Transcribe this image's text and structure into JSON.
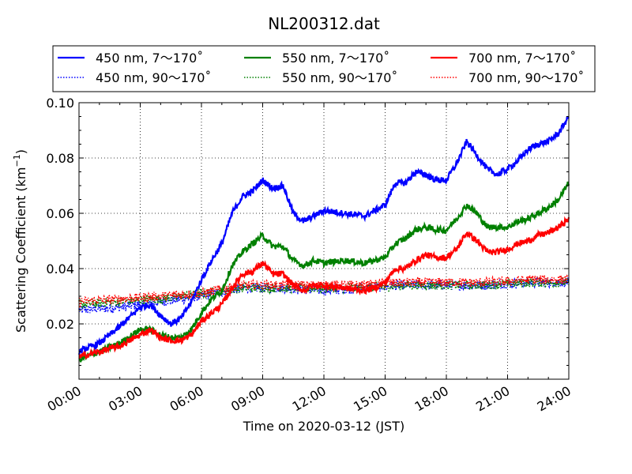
{
  "chart_data": {
    "type": "line",
    "title": "NL200312.dat",
    "xlabel": "Time on 2020-03-12 (JST)",
    "ylabel": "Scattering Coefficient (km",
    "ylabel_sup": "−1",
    "ylabel_tail": ")",
    "xlim": [
      "2020-03-12 00:00",
      "2020-03-13 00:00"
    ],
    "ylim": [
      0.0,
      0.1
    ],
    "grid": true,
    "grid_style": "dotted",
    "legend_placement": "top (outside, above plot)",
    "x_ticks": [
      "00:00",
      "03:00",
      "06:00",
      "09:00",
      "12:00",
      "15:00",
      "18:00",
      "21:00",
      "24:00"
    ],
    "x_tick_hours": [
      0,
      3,
      6,
      9,
      12,
      15,
      18,
      21,
      24
    ],
    "y_ticks": [
      "0.02",
      "0.04",
      "0.06",
      "0.08",
      "0.10"
    ],
    "y_tick_values": [
      0.02,
      0.04,
      0.06,
      0.08,
      0.1
    ],
    "series": [
      {
        "name": "450 nm, 7～170˚",
        "color": "#0000ff",
        "style": "solid",
        "x_hours": [
          0,
          1,
          2,
          3,
          3.5,
          4,
          4.5,
          5,
          5.5,
          6,
          6.5,
          7,
          7.5,
          8,
          8.5,
          9,
          9.5,
          10,
          10.5,
          11,
          11.5,
          12,
          13,
          14,
          14.5,
          15,
          15.5,
          16,
          16.5,
          17,
          17.5,
          18,
          18.5,
          19,
          19.5,
          20,
          20.5,
          21,
          21.5,
          22,
          22.5,
          23,
          23.5,
          24
        ],
        "values": [
          0.01,
          0.013,
          0.019,
          0.026,
          0.027,
          0.023,
          0.02,
          0.022,
          0.028,
          0.036,
          0.043,
          0.049,
          0.06,
          0.066,
          0.068,
          0.072,
          0.069,
          0.07,
          0.06,
          0.057,
          0.059,
          0.061,
          0.06,
          0.059,
          0.061,
          0.063,
          0.071,
          0.071,
          0.075,
          0.074,
          0.072,
          0.072,
          0.078,
          0.086,
          0.081,
          0.076,
          0.074,
          0.076,
          0.079,
          0.083,
          0.085,
          0.086,
          0.089,
          0.095
        ]
      },
      {
        "name": "450 nm, 90～170˚",
        "color": "#0000ff",
        "style": "dotted",
        "x_hours": [
          0,
          2,
          4,
          6,
          8,
          10,
          12,
          14,
          16,
          18,
          20,
          22,
          24
        ],
        "values": [
          0.025,
          0.026,
          0.028,
          0.03,
          0.033,
          0.033,
          0.032,
          0.033,
          0.034,
          0.034,
          0.034,
          0.035,
          0.035
        ]
      },
      {
        "name": "550 nm, 7～170˚",
        "color": "#008000",
        "style": "solid",
        "x_hours": [
          0,
          1,
          2,
          3,
          3.5,
          4,
          4.5,
          5,
          5.5,
          6,
          6.5,
          7,
          7.5,
          8,
          8.5,
          9,
          9.5,
          10,
          10.5,
          11,
          11.5,
          12,
          13,
          14,
          14.5,
          15,
          15.5,
          16,
          16.5,
          17,
          17.5,
          18,
          18.5,
          19,
          19.5,
          20,
          20.5,
          21,
          21.5,
          22,
          22.5,
          23,
          23.5,
          24
        ],
        "values": [
          0.007,
          0.01,
          0.013,
          0.018,
          0.018,
          0.016,
          0.015,
          0.015,
          0.018,
          0.024,
          0.029,
          0.032,
          0.041,
          0.046,
          0.049,
          0.052,
          0.048,
          0.048,
          0.043,
          0.041,
          0.043,
          0.042,
          0.043,
          0.042,
          0.043,
          0.044,
          0.049,
          0.051,
          0.054,
          0.055,
          0.054,
          0.054,
          0.058,
          0.063,
          0.06,
          0.055,
          0.055,
          0.055,
          0.057,
          0.058,
          0.06,
          0.062,
          0.065,
          0.071
        ]
      },
      {
        "name": "550 nm, 90～170˚",
        "color": "#008000",
        "style": "dotted",
        "x_hours": [
          0,
          2,
          4,
          6,
          8,
          10,
          12,
          14,
          16,
          18,
          20,
          22,
          24
        ],
        "values": [
          0.027,
          0.028,
          0.029,
          0.031,
          0.033,
          0.033,
          0.033,
          0.033,
          0.034,
          0.034,
          0.034,
          0.035,
          0.035
        ]
      },
      {
        "name": "700 nm, 7～170˚",
        "color": "#ff0000",
        "style": "solid",
        "x_hours": [
          0,
          1,
          2,
          3,
          3.5,
          4,
          4.5,
          5,
          5.5,
          6,
          6.5,
          7,
          7.5,
          8,
          8.5,
          9,
          9.5,
          10,
          10.5,
          11,
          11.5,
          12,
          13,
          14,
          14.5,
          15,
          15.5,
          16,
          16.5,
          17,
          17.5,
          18,
          18.5,
          19,
          19.5,
          20,
          20.5,
          21,
          21.5,
          22,
          22.5,
          23,
          23.5,
          24
        ],
        "values": [
          0.008,
          0.01,
          0.012,
          0.016,
          0.018,
          0.015,
          0.014,
          0.014,
          0.016,
          0.021,
          0.024,
          0.027,
          0.033,
          0.038,
          0.039,
          0.042,
          0.038,
          0.038,
          0.034,
          0.032,
          0.034,
          0.034,
          0.033,
          0.032,
          0.033,
          0.035,
          0.04,
          0.04,
          0.043,
          0.045,
          0.044,
          0.044,
          0.047,
          0.053,
          0.05,
          0.046,
          0.046,
          0.047,
          0.049,
          0.05,
          0.052,
          0.053,
          0.055,
          0.058
        ]
      },
      {
        "name": "700 nm, 90～170˚",
        "color": "#ff0000",
        "style": "dotted",
        "x_hours": [
          0,
          2,
          4,
          6,
          8,
          10,
          12,
          14,
          16,
          18,
          20,
          22,
          24
        ],
        "values": [
          0.028,
          0.029,
          0.03,
          0.031,
          0.034,
          0.034,
          0.034,
          0.034,
          0.035,
          0.035,
          0.035,
          0.036,
          0.036
        ]
      }
    ]
  }
}
